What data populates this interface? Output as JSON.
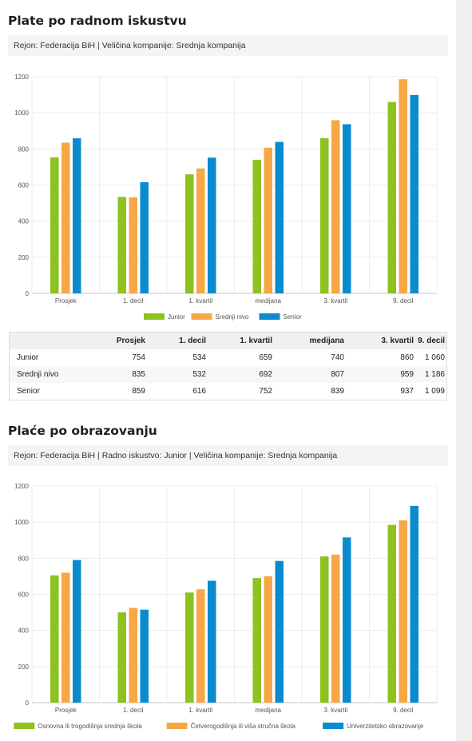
{
  "section1": {
    "title": "Plate po radnom iskustvu",
    "filter": "Rejon: Federacija BiH | Veličina kompanije: Srednja kompanija"
  },
  "section2": {
    "title": "Plaće po obrazovanju",
    "filter": "Rejon: Federacija BiH | Radno iskustvo: Junior | Veličina kompanije: Srednja kompanija"
  },
  "table1": {
    "headers": [
      "",
      "Prosjek",
      "1. decil",
      "1. kvartil",
      "medijana",
      "3. kvartil",
      "9. decil"
    ],
    "rows": [
      {
        "label": "Junior",
        "values": [
          "754",
          "534",
          "659",
          "740",
          "860",
          "1 060"
        ]
      },
      {
        "label": "Srednji nivo",
        "values": [
          "835",
          "532",
          "692",
          "807",
          "959",
          "1 186"
        ]
      },
      {
        "label": "Senior",
        "values": [
          "859",
          "616",
          "752",
          "839",
          "937",
          "1 099"
        ]
      }
    ]
  },
  "chart_data": [
    {
      "type": "bar",
      "categories": [
        "Prosjek",
        "1. decil",
        "1. kvartil",
        "medijana",
        "3. kvartil",
        "9. decil"
      ],
      "series": [
        {
          "name": "Junior",
          "color": "#8dc21f",
          "values": [
            754,
            534,
            659,
            740,
            860,
            1060
          ]
        },
        {
          "name": "Srednji nivo",
          "color": "#f7a746",
          "values": [
            835,
            532,
            692,
            807,
            959,
            1186
          ]
        },
        {
          "name": "Senior",
          "color": "#0a8bd0",
          "values": [
            859,
            616,
            752,
            839,
            937,
            1099
          ]
        }
      ],
      "ylim": [
        0,
        1200
      ],
      "yticks": [
        0,
        200,
        400,
        600,
        800,
        1000,
        1200
      ],
      "grid": true,
      "legend_position": "bottom"
    },
    {
      "type": "bar",
      "categories": [
        "Prosjek",
        "1. decil",
        "1. kvartil",
        "medijana",
        "3. kvartil",
        "9. decil"
      ],
      "series": [
        {
          "name": "Osnovna ili trogodišnja srednja škola",
          "color": "#8dc21f",
          "values": [
            705,
            500,
            610,
            690,
            810,
            985
          ]
        },
        {
          "name": "Četverogodišnja ili viša stručna škola",
          "color": "#f7a746",
          "values": [
            720,
            525,
            628,
            700,
            820,
            1010
          ]
        },
        {
          "name": "Univerzitetsko obrazovanje",
          "color": "#0a8bd0",
          "values": [
            790,
            515,
            675,
            785,
            915,
            1090
          ]
        }
      ],
      "ylim": [
        0,
        1200
      ],
      "yticks": [
        0,
        200,
        400,
        600,
        800,
        1000,
        1200
      ],
      "grid": true,
      "legend_position": "bottom"
    }
  ]
}
